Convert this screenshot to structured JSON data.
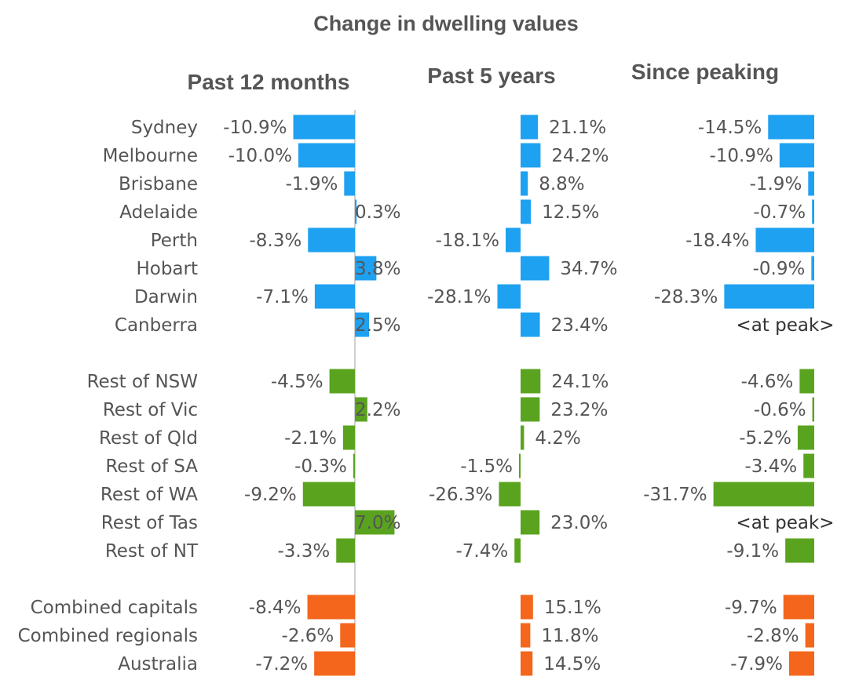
{
  "chart_data": {
    "type": "bar",
    "title": "Change in dwelling values",
    "panels": [
      {
        "key": "p12",
        "title": "Past 12 months"
      },
      {
        "key": "p5",
        "title": "Past 5 years"
      },
      {
        "key": "peak",
        "title": "Since peaking"
      }
    ],
    "colors": {
      "capital": "#1ea1f1",
      "regional": "#5aa31f",
      "combined": "#f4661b"
    },
    "peak_text": "<at peak>",
    "groups": [
      {
        "key": "capital",
        "rows": [
          {
            "name": "Sydney",
            "p12": -10.9,
            "p5": 21.1,
            "peak": -14.5
          },
          {
            "name": "Melbourne",
            "p12": -10.0,
            "p5": 24.2,
            "peak": -10.9
          },
          {
            "name": "Brisbane",
            "p12": -1.9,
            "p5": 8.8,
            "peak": -1.9
          },
          {
            "name": "Adelaide",
            "p12": 0.3,
            "p5": 12.5,
            "peak": -0.7
          },
          {
            "name": "Perth",
            "p12": -8.3,
            "p5": -18.1,
            "peak": -18.4
          },
          {
            "name": "Hobart",
            "p12": 3.8,
            "p5": 34.7,
            "peak": -0.9
          },
          {
            "name": "Darwin",
            "p12": -7.1,
            "p5": -28.1,
            "peak": -28.3
          },
          {
            "name": "Canberra",
            "p12": 2.5,
            "p5": 23.4,
            "peak": null
          }
        ]
      },
      {
        "key": "regional",
        "rows": [
          {
            "name": "Rest of NSW",
            "p12": -4.5,
            "p5": 24.1,
            "peak": -4.6
          },
          {
            "name": "Rest of Vic",
            "p12": 2.2,
            "p5": 23.2,
            "peak": -0.6
          },
          {
            "name": "Rest of Qld",
            "p12": -2.1,
            "p5": 4.2,
            "peak": -5.2
          },
          {
            "name": "Rest of SA",
            "p12": -0.3,
            "p5": -1.5,
            "peak": -3.4
          },
          {
            "name": "Rest of WA",
            "p12": -9.2,
            "p5": -26.3,
            "peak": -31.7
          },
          {
            "name": "Rest of Tas",
            "p12": 7.0,
            "p5": 23.0,
            "peak": null
          },
          {
            "name": "Rest of NT",
            "p12": -3.3,
            "p5": -7.4,
            "peak": -9.1
          }
        ]
      },
      {
        "key": "combined",
        "rows": [
          {
            "name": "Combined capitals",
            "p12": -8.4,
            "p5": 15.1,
            "peak": -9.7
          },
          {
            "name": "Combined regionals",
            "p12": -2.6,
            "p5": 11.8,
            "peak": -2.8
          },
          {
            "name": "Australia",
            "p12": -7.2,
            "p5": 14.5,
            "peak": -7.9
          }
        ]
      }
    ]
  }
}
